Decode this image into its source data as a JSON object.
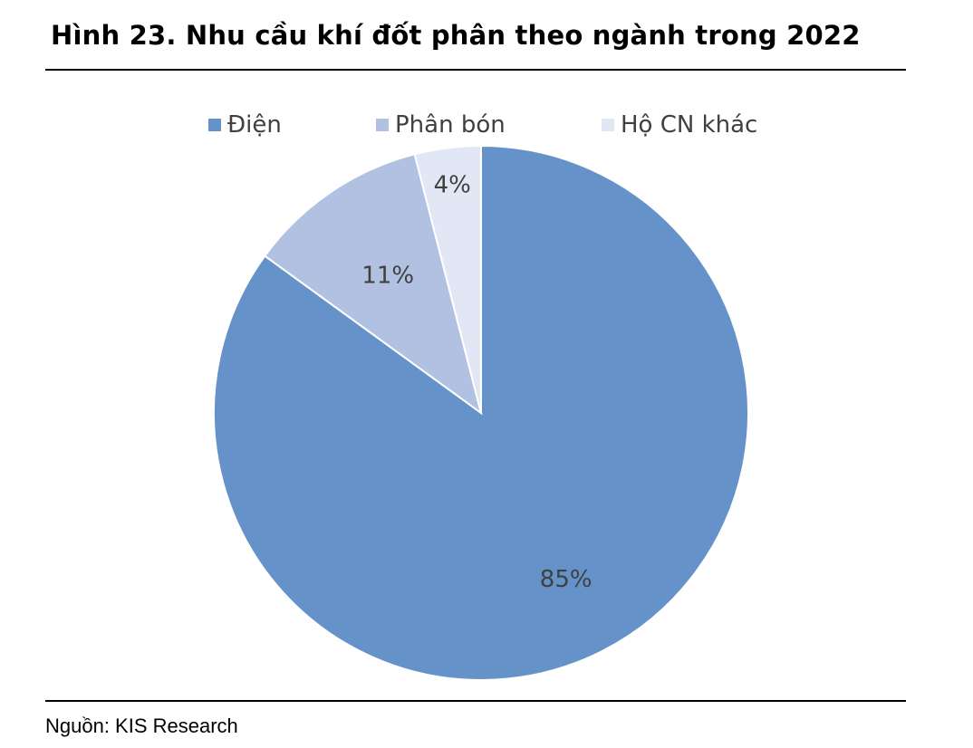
{
  "page": {
    "title": "Hình 23. Nhu cầu khí đốt phân theo ngành trong 2022",
    "source": "Nguồn: KIS Research"
  },
  "chart_data": {
    "type": "pie",
    "title": "Hình 23. Nhu cầu khí đốt phân theo ngành trong 2022",
    "categories": [
      "Điện",
      "Phân bón",
      "Hộ CN khác"
    ],
    "values": [
      85,
      11,
      4
    ],
    "labels": [
      "85%",
      "11%",
      "4%"
    ],
    "colors": [
      "#6592C9",
      "#B0C1E2",
      "#E1E7F4"
    ],
    "start_angle": "12 o'clock",
    "direction": "clockwise",
    "legend": "top",
    "unit": "%"
  }
}
